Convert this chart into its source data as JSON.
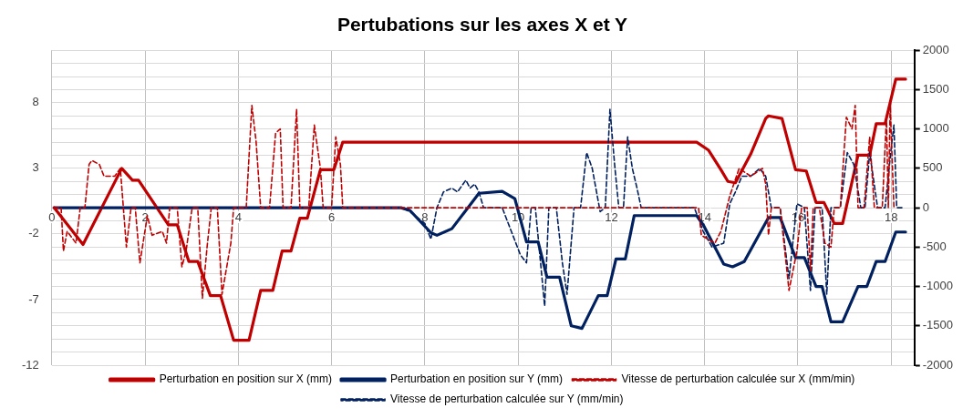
{
  "chart_data": {
    "type": "line",
    "title": "Pertubations sur les axes X et Y",
    "marker": "none",
    "grid": true,
    "legend": "bottom",
    "xlim": [
      0,
      18.5
    ],
    "xticks": [
      0,
      2,
      4,
      6,
      8,
      10,
      12,
      14,
      16,
      18
    ],
    "ylim": [
      -12,
      12
    ],
    "yticks": [
      -12,
      {
        "value": -11,
        "label": null
      },
      {
        "value": -10,
        "label": null
      },
      {
        "value": -9,
        "label": null
      },
      {
        "value": -8,
        "label": null
      },
      -7,
      {
        "value": -6,
        "label": null
      },
      {
        "value": -5,
        "label": null
      },
      {
        "value": -4,
        "label": null
      },
      {
        "value": -3,
        "label": null
      },
      -2,
      {
        "value": -1,
        "label": null
      },
      {
        "value": 0,
        "label": null
      },
      {
        "value": 1,
        "label": null
      },
      {
        "value": 2,
        "label": null
      },
      3,
      {
        "value": 4,
        "label": null
      },
      {
        "value": 5,
        "label": null
      },
      {
        "value": 6,
        "label": null
      },
      {
        "value": 7,
        "label": null
      },
      8,
      {
        "value": 9,
        "label": null
      },
      {
        "value": 10,
        "label": null
      },
      {
        "value": 11,
        "label": null
      },
      {
        "value": 12,
        "label": null
      }
    ],
    "y2lim": [
      -2000,
      2000
    ],
    "y2ticks": [
      -2000,
      -1500,
      -1000,
      -500,
      0,
      500,
      1000,
      1500,
      2000
    ],
    "series": [
      {
        "name": "Perturbation en position sur X (mm)",
        "color": "#c00000",
        "line_style": "solid",
        "x": [
          0.05,
          0.67,
          1.5,
          1.73,
          1.86,
          2.5,
          2.69,
          2.94,
          3.13,
          3.4,
          3.62,
          3.9,
          4.23,
          4.48,
          4.74,
          4.94,
          5.13,
          5.32,
          5.48,
          5.76,
          6.05,
          6.24,
          13.83,
          14.08,
          14.35,
          14.5,
          14.66,
          14.99,
          15.31,
          15.37,
          15.66,
          15.95,
          16.18,
          16.39,
          16.56,
          16.78,
          16.96,
          17.29,
          17.54,
          17.68,
          17.87,
          18.1,
          18.31
        ],
        "values": [
          0,
          -2.8,
          3.0,
          2.1,
          2.1,
          -1.3,
          -1.3,
          -4.1,
          -4.1,
          -6.7,
          -6.7,
          -10.1,
          -10.1,
          -6.3,
          -6.3,
          -3.3,
          -3.3,
          -0.8,
          -0.8,
          2.9,
          2.9,
          5.0,
          5.0,
          4.4,
          2.9,
          2.0,
          1.9,
          4.1,
          6.8,
          7.0,
          6.8,
          2.9,
          2.8,
          0.4,
          0.4,
          -1.2,
          -1.2,
          4.0,
          4.0,
          6.4,
          6.4,
          9.8,
          9.8
        ]
      },
      {
        "name": "Perturbation en position sur Y (mm)",
        "color": "#002060",
        "line_style": "solid",
        "x": [
          0.05,
          7.49,
          7.68,
          8.13,
          8.26,
          8.58,
          9.16,
          9.66,
          9.93,
          10.18,
          10.43,
          10.62,
          10.89,
          11.14,
          11.37,
          11.72,
          11.91,
          12.1,
          12.3,
          12.49,
          13.83,
          13.97,
          14.41,
          14.6,
          14.85,
          15.37,
          15.62,
          15.95,
          16.14,
          16.39,
          16.52,
          16.71,
          16.96,
          17.29,
          17.48,
          17.68,
          17.87,
          18.1,
          18.31
        ],
        "values": [
          0,
          0,
          -0.2,
          -1.9,
          -2.1,
          -1.6,
          1.1,
          1.25,
          0.7,
          -2.6,
          -2.6,
          -5.3,
          -5.3,
          -9.0,
          -9.2,
          -6.7,
          -6.7,
          -3.9,
          -3.9,
          -0.6,
          -0.6,
          -1.3,
          -4.3,
          -4.5,
          -4.1,
          -0.75,
          -0.75,
          -3.8,
          -3.8,
          -6.0,
          -6.0,
          -8.7,
          -8.7,
          -6.0,
          -6.0,
          -4.1,
          -4.1,
          -1.85,
          -1.85
        ]
      },
      {
        "name": "Vitesse de perturbation calculée sur X (mm/min)",
        "color": "#c00000",
        "line_style": "dashed",
        "axis": "y2",
        "x": [
          0.05,
          0.2,
          0.25,
          0.33,
          0.52,
          0.61,
          0.71,
          0.8,
          0.86,
          1.02,
          1.12,
          1.35,
          1.47,
          1.6,
          1.7,
          1.79,
          1.89,
          2.05,
          2.15,
          2.37,
          2.46,
          2.53,
          2.69,
          2.79,
          2.88,
          3.01,
          3.13,
          3.23,
          3.33,
          3.42,
          3.55,
          3.65,
          3.84,
          3.9,
          4.17,
          4.29,
          4.38,
          4.48,
          4.67,
          4.8,
          4.9,
          4.96,
          5.13,
          5.25,
          5.32,
          5.51,
          5.63,
          5.76,
          5.82,
          6.0,
          6.09,
          6.19,
          6.24,
          13.87,
          13.93,
          14.22,
          14.35,
          14.54,
          14.74,
          14.99,
          15.24,
          15.31,
          15.37,
          15.43,
          15.62,
          15.81,
          15.98,
          16.08,
          16.2,
          16.27,
          16.33,
          16.46,
          16.58,
          16.71,
          16.78,
          16.91,
          17.04,
          17.16,
          17.23,
          17.29,
          17.42,
          17.54,
          17.64,
          17.81,
          17.9,
          17.94,
          17.98,
          18.06
        ],
        "values": [
          0,
          0,
          -550,
          -300,
          -450,
          0,
          0,
          550,
          600,
          550,
          400,
          400,
          500,
          -500,
          0,
          0,
          -700,
          -100,
          -350,
          -300,
          -450,
          0,
          0,
          -750,
          -550,
          0,
          0,
          -1150,
          -500,
          0,
          0,
          -1100,
          -450,
          0,
          0,
          1300,
          850,
          0,
          0,
          950,
          1000,
          0,
          0,
          1250,
          0,
          0,
          1050,
          500,
          0,
          0,
          900,
          550,
          0,
          0,
          -350,
          -450,
          -300,
          150,
          500,
          400,
          500,
          300,
          -350,
          0,
          0,
          -1050,
          -550,
          0,
          0,
          -800,
          0,
          0,
          -450,
          -500,
          0,
          0,
          1150,
          1000,
          1300,
          0,
          0,
          900,
          0,
          0,
          1150,
          0,
          1300,
          0
        ]
      },
      {
        "name": "Vitesse de perturbation calculée sur Y (mm/min)",
        "color": "#002060",
        "line_style": "dashed",
        "axis": "y2",
        "x": [
          0.05,
          7.49,
          7.68,
          8.0,
          8.13,
          8.26,
          8.4,
          8.58,
          8.7,
          8.88,
          8.97,
          9.07,
          9.16,
          9.26,
          9.66,
          10.05,
          10.18,
          10.28,
          10.37,
          10.57,
          10.66,
          10.82,
          10.95,
          11.05,
          11.2,
          11.34,
          11.47,
          11.59,
          11.76,
          11.87,
          11.97,
          12.07,
          12.16,
          12.26,
          12.35,
          12.45,
          12.55,
          12.64,
          13.78,
          13.97,
          14.16,
          14.41,
          14.54,
          14.66,
          14.8,
          14.99,
          15.18,
          15.31,
          15.43,
          15.62,
          15.81,
          15.98,
          16.14,
          16.27,
          16.37,
          16.52,
          16.62,
          16.71,
          16.91,
          17.06,
          17.2,
          17.35,
          17.44,
          17.54,
          17.71,
          17.87,
          18.0,
          18.06,
          18.12,
          18.25
        ],
        "values": [
          0,
          0,
          -50,
          -200,
          -400,
          0,
          200,
          250,
          200,
          350,
          250,
          300,
          200,
          0,
          0,
          -600,
          -700,
          0,
          0,
          -1250,
          0,
          0,
          -700,
          -1100,
          0,
          0,
          700,
          500,
          -50,
          0,
          1250,
          550,
          0,
          0,
          900,
          500,
          250,
          0,
          0,
          -300,
          -500,
          -450,
          50,
          200,
          400,
          400,
          500,
          400,
          0,
          0,
          -900,
          50,
          0,
          -1050,
          0,
          0,
          -1100,
          0,
          0,
          700,
          550,
          0,
          0,
          700,
          0,
          0,
          750,
          1050,
          0,
          0
        ]
      }
    ]
  }
}
